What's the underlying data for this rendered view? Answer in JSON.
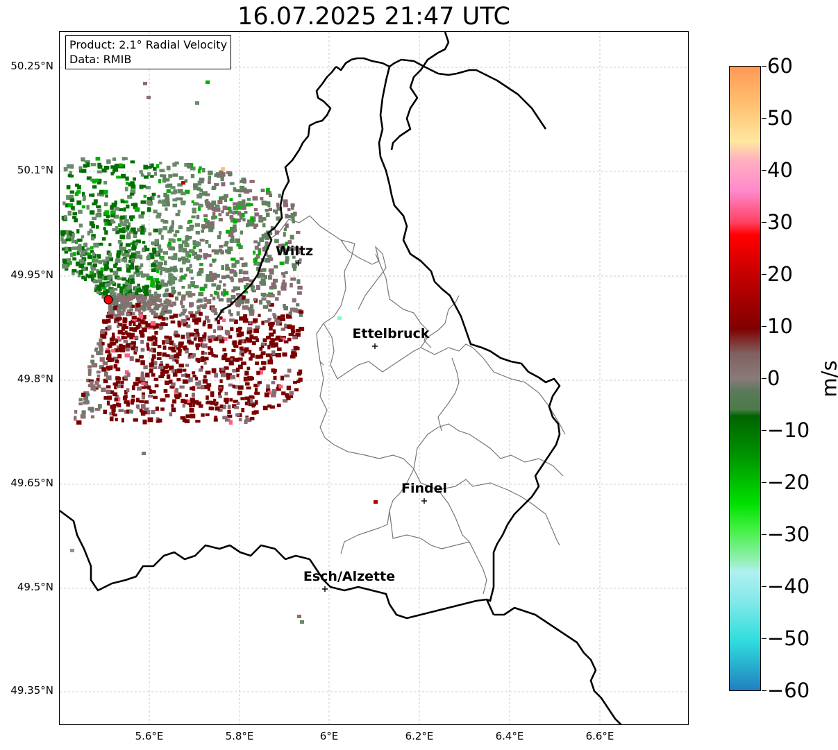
{
  "title": "16.07.2025 21:47 UTC",
  "info": {
    "product": "Product: 2.1° Radial Velocity",
    "source": "Data: RMIB"
  },
  "lat_labels": [
    "50.25°N",
    "50.1°N",
    "49.95°N",
    "49.8°N",
    "49.65°N",
    "49.5°N",
    "49.35°N"
  ],
  "lon_labels": [
    "5.6°E",
    "5.8°E",
    "6°E",
    "6.2°E",
    "6.4°E",
    "6.6°E"
  ],
  "cities": [
    {
      "name": "Wiltz"
    },
    {
      "name": "Ettelbruck"
    },
    {
      "name": "Findel"
    },
    {
      "name": "Esch/Alzette"
    }
  ],
  "colorbar": {
    "unit": "m/s",
    "ticks": [
      "60",
      "50",
      "40",
      "30",
      "20",
      "10",
      "0",
      "−10",
      "−20",
      "−30",
      "−40",
      "−50",
      "−60"
    ],
    "range": [
      -60,
      60
    ],
    "colors": {
      "high": "#ff9955",
      "pink": "#ff88cc",
      "red": "#ff0000",
      "darkred": "#800000",
      "zero": "#8a7a7a",
      "darkgreen": "#006400",
      "green": "#00e000",
      "cyan": "#30dddd",
      "low": "#2080c0"
    }
  },
  "radar": {
    "site_color": "#ff0000"
  }
}
